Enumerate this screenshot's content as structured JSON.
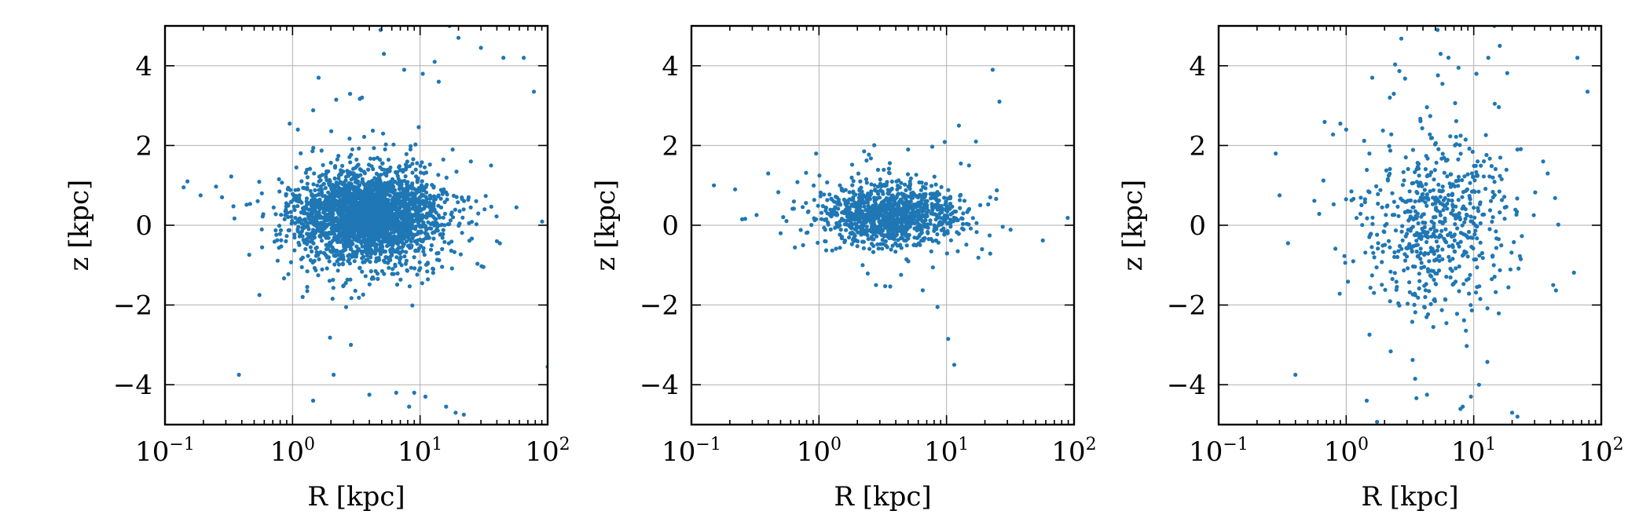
{
  "chart_data": [
    {
      "type": "scatter",
      "xlabel": "R [kpc]",
      "ylabel": "z [kpc]",
      "xscale": "log",
      "xlim": [
        0.1,
        100
      ],
      "ylim": [
        -5,
        5
      ],
      "xticks": [
        {
          "base": "10",
          "exp": "−1"
        },
        {
          "base": "10",
          "exp": "0"
        },
        {
          "base": "10",
          "exp": "1"
        },
        {
          "base": "10",
          "exp": "2"
        }
      ],
      "yticks": [
        "4",
        "2",
        "0",
        "−2",
        "−4"
      ],
      "grid": true,
      "point_color": "#1f77b4",
      "n_points": 2600,
      "distribution": {
        "log_r_center": 0.6,
        "log_r_sigma": 0.28,
        "z_center": 0.2,
        "z_sigma": 0.55
      },
      "points": [
        [
          0.15,
          1.1
        ],
        [
          0.14,
          0.95
        ],
        [
          0.19,
          0.75
        ],
        [
          0.38,
          -3.75
        ],
        [
          0.28,
          0.7
        ],
        [
          0.95,
          2.55
        ],
        [
          1.1,
          2.4
        ],
        [
          1.45,
          -4.4
        ],
        [
          1.6,
          3.7
        ],
        [
          2.2,
          3.15
        ],
        [
          3.5,
          3.2
        ],
        [
          4.9,
          4.9
        ],
        [
          5.2,
          4.3
        ],
        [
          7.5,
          3.9
        ],
        [
          10.5,
          3.8
        ],
        [
          13,
          4.1
        ],
        [
          14,
          3.6
        ],
        [
          17,
          5.0
        ],
        [
          20,
          4.7
        ],
        [
          30,
          4.45
        ],
        [
          45,
          4.2
        ],
        [
          65,
          4.2
        ],
        [
          78,
          3.35
        ],
        [
          100,
          -3.55
        ],
        [
          22,
          -4.75
        ],
        [
          19,
          -4.7
        ],
        [
          16,
          -4.55
        ],
        [
          11,
          -4.3
        ],
        [
          9,
          -4.2
        ],
        [
          8.2,
          -4.55
        ],
        [
          6.5,
          -4.2
        ],
        [
          4.0,
          -4.25
        ],
        [
          2.1,
          -3.75
        ],
        [
          1.2,
          -1.8
        ],
        [
          0.55,
          -1.75
        ],
        [
          36,
          1.5
        ],
        [
          32,
          0.4
        ],
        [
          40,
          -0.4
        ],
        [
          24,
          0.7
        ],
        [
          18,
          1.9
        ],
        [
          25,
          1.6
        ]
      ]
    },
    {
      "type": "scatter",
      "xlabel": "R [kpc]",
      "ylabel": "z [kpc]",
      "xscale": "log",
      "xlim": [
        0.1,
        100
      ],
      "ylim": [
        -5,
        5
      ],
      "xticks": [
        {
          "base": "10",
          "exp": "−1"
        },
        {
          "base": "10",
          "exp": "0"
        },
        {
          "base": "10",
          "exp": "1"
        },
        {
          "base": "10",
          "exp": "2"
        }
      ],
      "yticks": [
        "4",
        "2",
        "0",
        "−2",
        "−4"
      ],
      "grid": true,
      "point_color": "#1f77b4",
      "n_points": 1100,
      "distribution": {
        "log_r_center": 0.55,
        "log_r_sigma": 0.27,
        "z_center": 0.25,
        "z_sigma": 0.38
      },
      "points": [
        [
          0.15,
          1.0
        ],
        [
          0.22,
          0.9
        ],
        [
          0.25,
          0.15
        ],
        [
          0.4,
          1.3
        ],
        [
          0.5,
          -0.2
        ],
        [
          0.75,
          -0.5
        ],
        [
          0.95,
          1.8
        ],
        [
          2.2,
          -1.0
        ],
        [
          2.8,
          -1.5
        ],
        [
          5.0,
          1.9
        ],
        [
          12.5,
          2.5
        ],
        [
          15,
          1.5
        ],
        [
          17,
          2.1
        ],
        [
          19,
          -0.6
        ],
        [
          23,
          3.9
        ],
        [
          26,
          3.1
        ],
        [
          11.5,
          -3.5
        ],
        [
          10.3,
          -2.85
        ],
        [
          8.5,
          -2.05
        ],
        [
          22,
          0.7
        ]
      ]
    },
    {
      "type": "scatter",
      "xlabel": "R [kpc]",
      "ylabel": "z [kpc]",
      "xscale": "log",
      "xlim": [
        0.1,
        100
      ],
      "ylim": [
        -5,
        5
      ],
      "xticks": [
        {
          "base": "10",
          "exp": "−1"
        },
        {
          "base": "10",
          "exp": "0"
        },
        {
          "base": "10",
          "exp": "1"
        },
        {
          "base": "10",
          "exp": "2"
        }
      ],
      "yticks": [
        "4",
        "2",
        "0",
        "−2",
        "−4"
      ],
      "grid": true,
      "point_color": "#1f77b4",
      "n_points": 620,
      "distribution": {
        "log_r_center": 0.7,
        "log_r_sigma": 0.3,
        "z_center": 0.1,
        "z_sigma": 1.05
      },
      "points": [
        [
          0.28,
          1.8
        ],
        [
          0.3,
          0.75
        ],
        [
          0.35,
          -0.45
        ],
        [
          0.4,
          -3.75
        ],
        [
          0.9,
          2.55
        ],
        [
          1.0,
          2.4
        ],
        [
          1.45,
          -4.4
        ],
        [
          1.6,
          3.7
        ],
        [
          2.2,
          3.2
        ],
        [
          5.2,
          4.9
        ],
        [
          5.5,
          4.3
        ],
        [
          7.6,
          3.95
        ],
        [
          10.5,
          3.8
        ],
        [
          13,
          4.2
        ],
        [
          14.5,
          5.0
        ],
        [
          16,
          4.5
        ],
        [
          22,
          1.9
        ],
        [
          35,
          1.6
        ],
        [
          38,
          1.3
        ],
        [
          42,
          -1.5
        ],
        [
          65,
          4.2
        ],
        [
          78,
          3.35
        ],
        [
          20,
          -4.7
        ],
        [
          22,
          -4.8
        ],
        [
          8.2,
          -4.55
        ],
        [
          9.5,
          -4.3
        ],
        [
          4.3,
          -4.25
        ],
        [
          11,
          -4.0
        ]
      ]
    }
  ]
}
